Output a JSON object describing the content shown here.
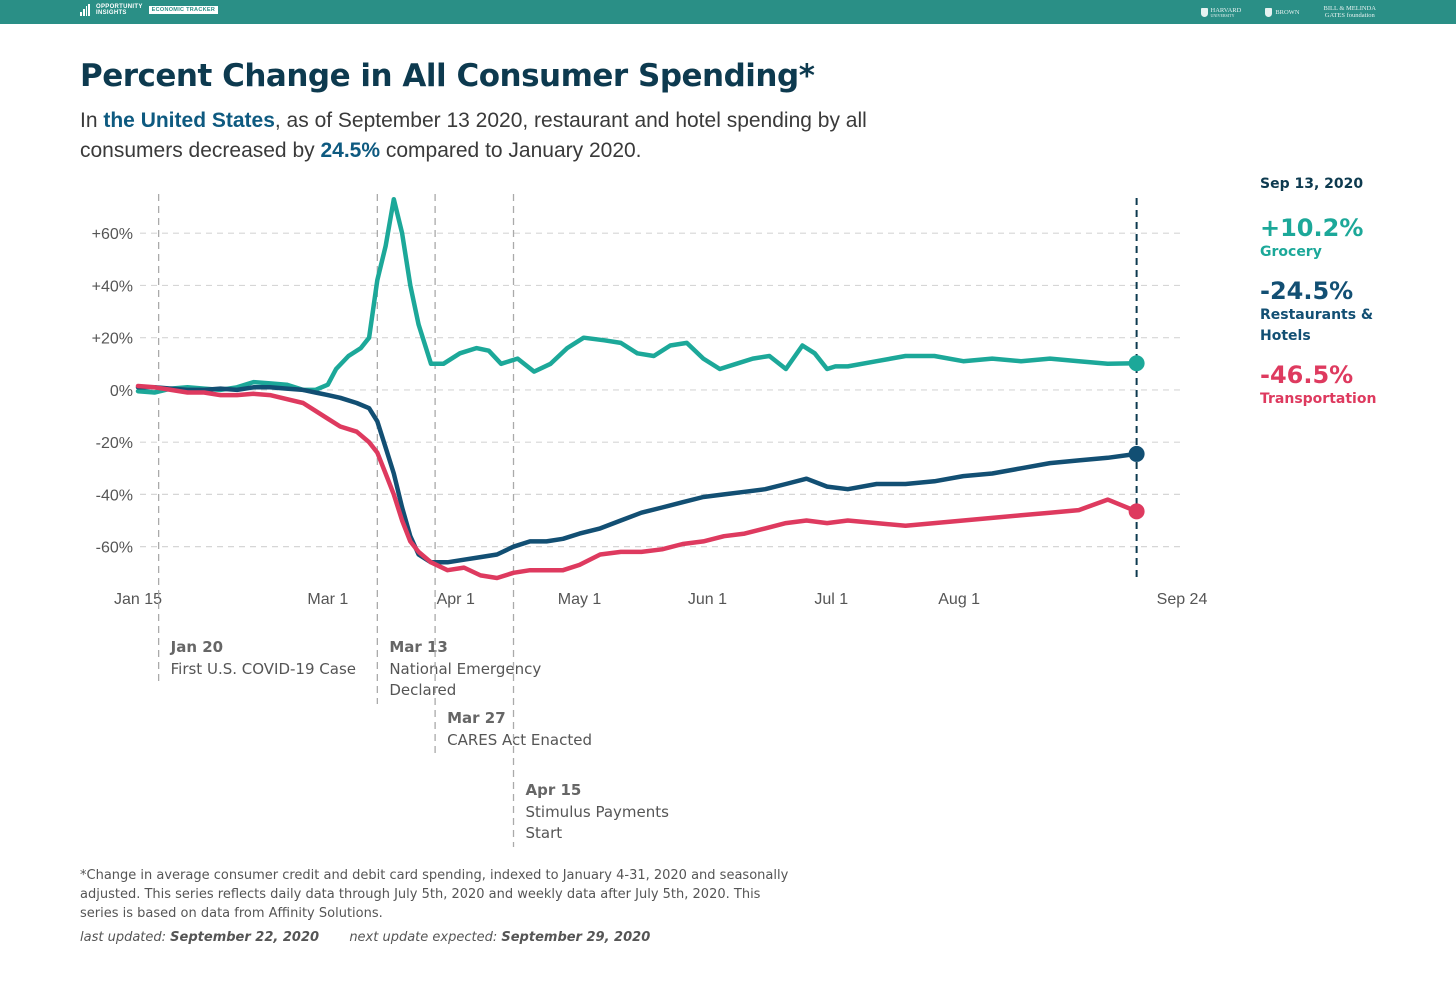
{
  "header": {
    "brand_line1": "OPPORTUNITY",
    "brand_line2": "INSIGHTS",
    "brand_tag": "ECONOMIC TRACKER",
    "partners": [
      "HARVARD",
      "UNIVERSITY",
      "BROWN",
      "BILL & MELINDA",
      "GATES foundation"
    ]
  },
  "title": "Percent Change in All Consumer Spending*",
  "subtitle": {
    "p1": "In ",
    "location": "the United States",
    "p2": ", as of September 13 2020, restaurant and hotel spending by all consumers decreased by ",
    "value": "24.5%",
    "p3": " compared to January 2020."
  },
  "legend": {
    "date": "Sep 13, 2020",
    "items": [
      {
        "value": "+10.2%",
        "name": "Grocery",
        "color": "#1ca899"
      },
      {
        "value": "-24.5%",
        "name": "Restaurants & Hotels",
        "color": "#124f73"
      },
      {
        "value": "-46.5%",
        "name": "Transportation",
        "color": "#de3a5f"
      }
    ]
  },
  "footnote": {
    "text": "*Change in average consumer credit and debit card spending, indexed to January 4-31, 2020 and seasonally adjusted. This series reflects daily data through July 5th, 2020 and weekly data after July 5th, 2020. This series is based on data from Affinity Solutions.",
    "last_updated_label": "last updated:",
    "last_updated": "September 22, 2020",
    "next_update_label": "next update expected:",
    "next_update": "September 29, 2020"
  },
  "chart_data": {
    "type": "line",
    "x_domain": [
      "2020-01-15",
      "2020-09-24"
    ],
    "ylim": [
      -72,
      75
    ],
    "grid": true,
    "y_ticks": [
      {
        "value": 60,
        "label": "+60%"
      },
      {
        "value": 40,
        "label": "+40%"
      },
      {
        "value": 20,
        "label": "+20%"
      },
      {
        "value": 0,
        "label": "0%"
      },
      {
        "value": -20,
        "label": "-20%"
      },
      {
        "value": -40,
        "label": "-40%"
      },
      {
        "value": -60,
        "label": "-60%"
      }
    ],
    "x_ticks": [
      {
        "date": "2020-01-15",
        "label": "Jan 15"
      },
      {
        "date": "2020-03-01",
        "label": "Mar 1"
      },
      {
        "date": "2020-04-01",
        "label": "Apr 1"
      },
      {
        "date": "2020-05-01",
        "label": "May 1"
      },
      {
        "date": "2020-06-01",
        "label": "Jun 1"
      },
      {
        "date": "2020-07-01",
        "label": "Jul 1"
      },
      {
        "date": "2020-08-01",
        "label": "Aug 1"
      },
      {
        "date": "2020-09-24",
        "label": "Sep 24"
      }
    ],
    "events": [
      {
        "date": "2020-01-20",
        "label": "Jan 20",
        "desc": [
          "First U.S. COVID-19 Case"
        ],
        "level": 0
      },
      {
        "date": "2020-03-13",
        "label": "Mar 13",
        "desc": [
          "National Emergency",
          "Declared"
        ],
        "level": 0
      },
      {
        "date": "2020-03-27",
        "label": "Mar 27",
        "desc": [
          "CARES Act Enacted"
        ],
        "level": 1
      },
      {
        "date": "2020-04-15",
        "label": "Apr 15",
        "desc": [
          "Stimulus Payments",
          "Start"
        ],
        "level": 2
      }
    ],
    "highlight_date": "2020-09-13",
    "series": [
      {
        "name": "Grocery",
        "color": "#1ca899",
        "points": [
          [
            "2020-01-15",
            -0.5
          ],
          [
            "2020-01-19",
            -1
          ],
          [
            "2020-01-23",
            0.5
          ],
          [
            "2020-01-27",
            1
          ],
          [
            "2020-01-31",
            0.5
          ],
          [
            "2020-02-04",
            0
          ],
          [
            "2020-02-08",
            1
          ],
          [
            "2020-02-12",
            3
          ],
          [
            "2020-02-16",
            2.5
          ],
          [
            "2020-02-20",
            2
          ],
          [
            "2020-02-24",
            0
          ],
          [
            "2020-02-27",
            0
          ],
          [
            "2020-03-01",
            2
          ],
          [
            "2020-03-03",
            8
          ],
          [
            "2020-03-06",
            13
          ],
          [
            "2020-03-09",
            16
          ],
          [
            "2020-03-11",
            20
          ],
          [
            "2020-03-13",
            42
          ],
          [
            "2020-03-15",
            55
          ],
          [
            "2020-03-17",
            73
          ],
          [
            "2020-03-19",
            60
          ],
          [
            "2020-03-21",
            40
          ],
          [
            "2020-03-23",
            25
          ],
          [
            "2020-03-26",
            10
          ],
          [
            "2020-03-29",
            10
          ],
          [
            "2020-04-02",
            14
          ],
          [
            "2020-04-06",
            16
          ],
          [
            "2020-04-09",
            15
          ],
          [
            "2020-04-12",
            10
          ],
          [
            "2020-04-16",
            12
          ],
          [
            "2020-04-20",
            7
          ],
          [
            "2020-04-24",
            10
          ],
          [
            "2020-04-28",
            16
          ],
          [
            "2020-05-02",
            20
          ],
          [
            "2020-05-07",
            19
          ],
          [
            "2020-05-11",
            18
          ],
          [
            "2020-05-15",
            14
          ],
          [
            "2020-05-19",
            13
          ],
          [
            "2020-05-23",
            17
          ],
          [
            "2020-05-27",
            18
          ],
          [
            "2020-05-31",
            12
          ],
          [
            "2020-06-04",
            8
          ],
          [
            "2020-06-08",
            10
          ],
          [
            "2020-06-12",
            12
          ],
          [
            "2020-06-16",
            13
          ],
          [
            "2020-06-20",
            8
          ],
          [
            "2020-06-24",
            17
          ],
          [
            "2020-06-27",
            14
          ],
          [
            "2020-06-30",
            8
          ],
          [
            "2020-07-02",
            9
          ],
          [
            "2020-07-05",
            9
          ],
          [
            "2020-07-12",
            11
          ],
          [
            "2020-07-19",
            13
          ],
          [
            "2020-07-26",
            13
          ],
          [
            "2020-08-02",
            11
          ],
          [
            "2020-08-09",
            12
          ],
          [
            "2020-08-16",
            11
          ],
          [
            "2020-08-23",
            12
          ],
          [
            "2020-08-30",
            11
          ],
          [
            "2020-09-06",
            10
          ],
          [
            "2020-09-13",
            10.2
          ]
        ]
      },
      {
        "name": "Restaurants & Hotels",
        "color": "#124f73",
        "points": [
          [
            "2020-01-15",
            1
          ],
          [
            "2020-01-19",
            1
          ],
          [
            "2020-01-23",
            0.5
          ],
          [
            "2020-01-27",
            0
          ],
          [
            "2020-01-31",
            0
          ],
          [
            "2020-02-04",
            0.5
          ],
          [
            "2020-02-08",
            0
          ],
          [
            "2020-02-12",
            1
          ],
          [
            "2020-02-16",
            1
          ],
          [
            "2020-02-20",
            0.5
          ],
          [
            "2020-02-24",
            0
          ],
          [
            "2020-02-27",
            -1
          ],
          [
            "2020-03-01",
            -2
          ],
          [
            "2020-03-04",
            -3
          ],
          [
            "2020-03-08",
            -5
          ],
          [
            "2020-03-11",
            -7
          ],
          [
            "2020-03-13",
            -12
          ],
          [
            "2020-03-15",
            -22
          ],
          [
            "2020-03-17",
            -32
          ],
          [
            "2020-03-19",
            -45
          ],
          [
            "2020-03-21",
            -56
          ],
          [
            "2020-03-23",
            -63
          ],
          [
            "2020-03-26",
            -66
          ],
          [
            "2020-03-30",
            -66
          ],
          [
            "2020-04-03",
            -65
          ],
          [
            "2020-04-07",
            -64
          ],
          [
            "2020-04-11",
            -63
          ],
          [
            "2020-04-15",
            -60
          ],
          [
            "2020-04-19",
            -58
          ],
          [
            "2020-04-23",
            -58
          ],
          [
            "2020-04-27",
            -57
          ],
          [
            "2020-05-01",
            -55
          ],
          [
            "2020-05-06",
            -53
          ],
          [
            "2020-05-11",
            -50
          ],
          [
            "2020-05-16",
            -47
          ],
          [
            "2020-05-21",
            -45
          ],
          [
            "2020-05-26",
            -43
          ],
          [
            "2020-05-31",
            -41
          ],
          [
            "2020-06-05",
            -40
          ],
          [
            "2020-06-10",
            -39
          ],
          [
            "2020-06-15",
            -38
          ],
          [
            "2020-06-20",
            -36
          ],
          [
            "2020-06-25",
            -34
          ],
          [
            "2020-06-30",
            -37
          ],
          [
            "2020-07-05",
            -38
          ],
          [
            "2020-07-12",
            -36
          ],
          [
            "2020-07-19",
            -36
          ],
          [
            "2020-07-26",
            -35
          ],
          [
            "2020-08-02",
            -33
          ],
          [
            "2020-08-09",
            -32
          ],
          [
            "2020-08-16",
            -30
          ],
          [
            "2020-08-23",
            -28
          ],
          [
            "2020-08-30",
            -27
          ],
          [
            "2020-09-06",
            -26
          ],
          [
            "2020-09-13",
            -24.5
          ]
        ]
      },
      {
        "name": "Transportation",
        "color": "#de3a5f",
        "points": [
          [
            "2020-01-15",
            1.5
          ],
          [
            "2020-01-19",
            1
          ],
          [
            "2020-01-23",
            0
          ],
          [
            "2020-01-27",
            -1
          ],
          [
            "2020-01-31",
            -1
          ],
          [
            "2020-02-04",
            -2
          ],
          [
            "2020-02-08",
            -2
          ],
          [
            "2020-02-12",
            -1.5
          ],
          [
            "2020-02-16",
            -2
          ],
          [
            "2020-02-20",
            -3.5
          ],
          [
            "2020-02-24",
            -5
          ],
          [
            "2020-02-27",
            -8
          ],
          [
            "2020-03-01",
            -11
          ],
          [
            "2020-03-04",
            -14
          ],
          [
            "2020-03-08",
            -16
          ],
          [
            "2020-03-11",
            -20
          ],
          [
            "2020-03-13",
            -24
          ],
          [
            "2020-03-15",
            -32
          ],
          [
            "2020-03-17",
            -40
          ],
          [
            "2020-03-19",
            -50
          ],
          [
            "2020-03-21",
            -58
          ],
          [
            "2020-03-23",
            -62
          ],
          [
            "2020-03-26",
            -66
          ],
          [
            "2020-03-30",
            -69
          ],
          [
            "2020-04-03",
            -68
          ],
          [
            "2020-04-07",
            -71
          ],
          [
            "2020-04-11",
            -72
          ],
          [
            "2020-04-15",
            -70
          ],
          [
            "2020-04-19",
            -69
          ],
          [
            "2020-04-23",
            -69
          ],
          [
            "2020-04-27",
            -69
          ],
          [
            "2020-05-01",
            -67
          ],
          [
            "2020-05-06",
            -63
          ],
          [
            "2020-05-11",
            -62
          ],
          [
            "2020-05-16",
            -62
          ],
          [
            "2020-05-21",
            -61
          ],
          [
            "2020-05-26",
            -59
          ],
          [
            "2020-05-31",
            -58
          ],
          [
            "2020-06-05",
            -56
          ],
          [
            "2020-06-10",
            -55
          ],
          [
            "2020-06-15",
            -53
          ],
          [
            "2020-06-20",
            -51
          ],
          [
            "2020-06-25",
            -50
          ],
          [
            "2020-06-30",
            -51
          ],
          [
            "2020-07-05",
            -50
          ],
          [
            "2020-07-12",
            -51
          ],
          [
            "2020-07-19",
            -52
          ],
          [
            "2020-07-26",
            -51
          ],
          [
            "2020-08-02",
            -50
          ],
          [
            "2020-08-09",
            -49
          ],
          [
            "2020-08-16",
            -48
          ],
          [
            "2020-08-23",
            -47
          ],
          [
            "2020-08-30",
            -46
          ],
          [
            "2020-09-06",
            -42
          ],
          [
            "2020-09-13",
            -46.5
          ]
        ]
      }
    ]
  }
}
